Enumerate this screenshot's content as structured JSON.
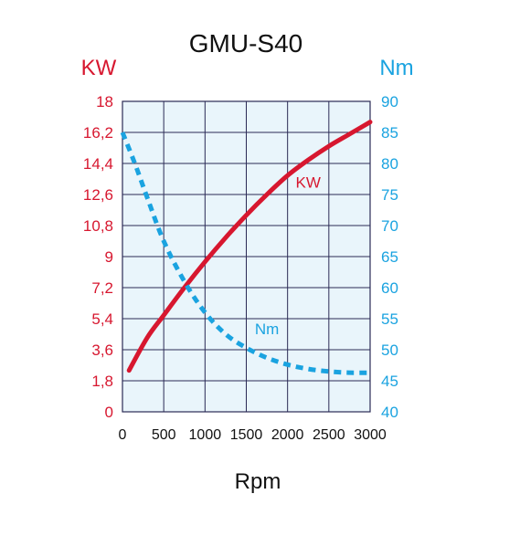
{
  "chart_data": {
    "type": "line",
    "title": "GMU-S40",
    "xlabel": "Rpm",
    "y_left_label": "KW",
    "y_right_label": "Nm",
    "xlim": [
      0,
      3000
    ],
    "ylim_left": [
      0,
      18
    ],
    "ylim_right": [
      40,
      90
    ],
    "x_ticks": [
      "0",
      "500",
      "1000",
      "1500",
      "2000",
      "2500",
      "3000"
    ],
    "x_tick_values": [
      0,
      500,
      1000,
      1500,
      2000,
      2500,
      3000
    ],
    "y_left_ticks": [
      "0",
      "1,8",
      "3,6",
      "5,4",
      "7,2",
      "9",
      "10,8",
      "12,6",
      "14,4",
      "16,2",
      "18"
    ],
    "y_left_tick_values": [
      0,
      1.8,
      3.6,
      5.4,
      7.2,
      9,
      10.8,
      12.6,
      14.4,
      16.2,
      18
    ],
    "y_right_ticks": [
      "40",
      "45",
      "50",
      "55",
      "60",
      "65",
      "70",
      "75",
      "80",
      "85",
      "90"
    ],
    "y_right_tick_values": [
      40,
      45,
      50,
      55,
      60,
      65,
      70,
      75,
      80,
      85,
      90
    ],
    "grid": true,
    "series": [
      {
        "name": "KW",
        "axis": "left",
        "style": "solid",
        "color": "#d7172f",
        "label_at": [
          2250,
          13.0
        ],
        "x": [
          80,
          300,
          500,
          750,
          1000,
          1250,
          1500,
          1750,
          2000,
          2250,
          2500,
          2750,
          3000
        ],
        "y": [
          2.4,
          4.3,
          5.6,
          7.2,
          8.7,
          10.1,
          11.4,
          12.6,
          13.7,
          14.6,
          15.4,
          16.1,
          16.8
        ]
      },
      {
        "name": "Nm",
        "axis": "right",
        "style": "dotted",
        "color": "#1aa3e0",
        "label_at": [
          1750,
          52.5
        ],
        "x": [
          0,
          150,
          300,
          500,
          750,
          1000,
          1250,
          1500,
          1750,
          2000,
          2250,
          2500,
          2750,
          3000
        ],
        "y": [
          85,
          80,
          74.5,
          67.5,
          61,
          56,
          52.5,
          50.3,
          48.7,
          47.6,
          46.9,
          46.5,
          46.3,
          46.3
        ]
      }
    ]
  },
  "colors": {
    "plot_background": "#e9f5fb",
    "grid": "#2a2a55",
    "left_axis": "#d7172f",
    "right_axis": "#1aa3e0",
    "text": "#111111"
  }
}
